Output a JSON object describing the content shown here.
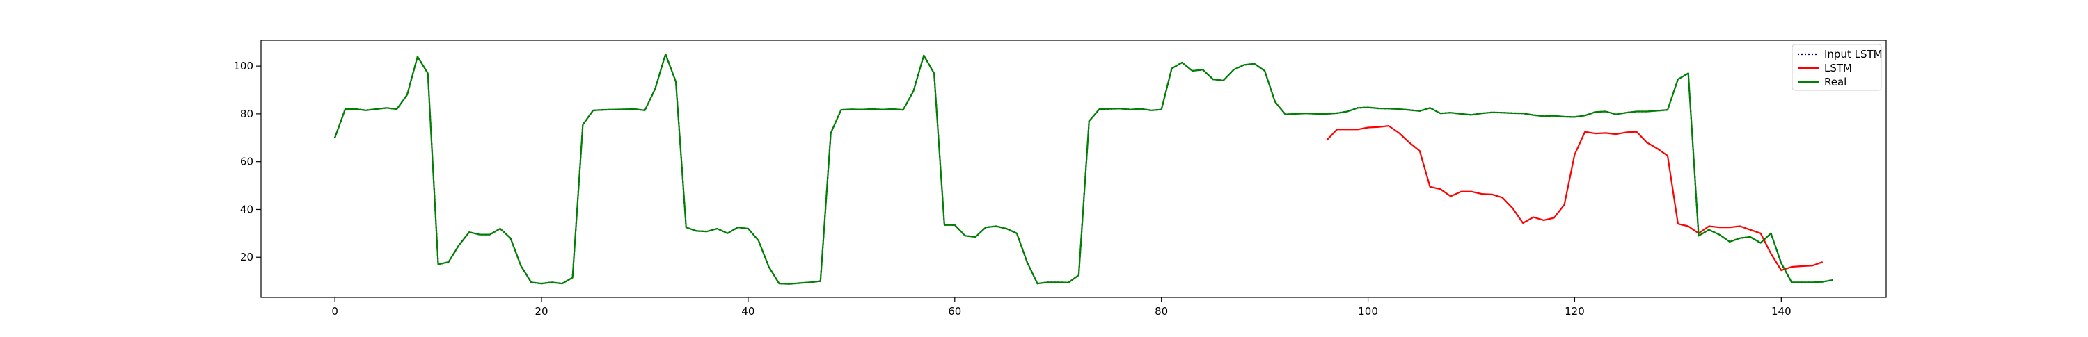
{
  "chart_data": {
    "type": "line",
    "title": "",
    "xlabel": "",
    "ylabel": "",
    "xlim": [
      -7.15,
      150.15
    ],
    "ylim": [
      3.2,
      110.8
    ],
    "xticks": [
      0,
      20,
      40,
      60,
      80,
      100,
      120,
      140
    ],
    "yticks": [
      20,
      40,
      60,
      80,
      100
    ],
    "grid": false,
    "legend_position": "top-right",
    "series": [
      {
        "name": "Input LSTM",
        "color": "#00008b",
        "style": "dotted",
        "x_start": 0,
        "values": [
          70,
          82,
          82,
          81.5,
          82,
          82.5,
          82,
          88,
          104,
          97,
          17,
          18,
          25,
          30.5,
          29.5,
          29.5,
          32,
          28,
          16.5,
          9.5,
          9,
          9.5,
          9,
          11.5,
          75.5,
          81.5,
          81.7,
          81.8,
          81.9,
          82,
          81.5,
          90.5,
          105,
          93.5,
          32.5,
          31,
          30.8,
          32,
          30,
          32.5,
          32,
          27,
          16,
          9,
          8.8,
          9.2,
          9.5,
          10,
          72,
          81.7,
          81.9,
          81.8,
          82,
          81.8,
          82,
          81.7,
          89.5,
          104.5,
          97,
          33.5,
          33.5,
          29,
          28.5,
          32.5,
          33,
          32,
          30,
          18,
          9,
          9.5,
          9.5,
          9.4,
          12.5,
          77,
          82,
          82.1,
          82.2,
          81.8,
          82.1,
          81.5,
          81.8,
          99,
          101.5,
          98,
          98.5,
          94.5,
          94,
          98.5,
          100.5,
          101,
          98,
          85,
          79.8,
          80,
          80.2,
          80,
          80,
          80.3,
          81,
          82.5,
          82.7,
          82.3,
          82.2,
          82,
          81.6,
          81.2,
          82.5,
          80.2,
          80.5,
          80,
          79.6,
          80.2,
          80.6,
          80.5,
          80.3,
          80.2,
          79.5,
          79,
          79.2,
          78.8,
          78.7,
          79.3,
          80.8,
          81,
          79.8,
          80.5,
          81,
          81,
          81.3,
          81.7,
          94.5,
          97,
          29,
          31.5,
          29.5,
          26.5,
          28,
          28.5,
          26,
          30,
          17.5,
          9.5,
          9.5,
          9.5,
          9.7,
          10.5
        ]
      },
      {
        "name": "LSTM",
        "color": "#ff0000",
        "style": "solid",
        "x_start": 96,
        "values": [
          69,
          73.5,
          73.5,
          73.5,
          74.3,
          74.5,
          75,
          72,
          68,
          64.5,
          49.5,
          48.5,
          45.5,
          47.5,
          47.5,
          46.5,
          46.3,
          45,
          40.5,
          34.3,
          36.8,
          35.5,
          36.5,
          42,
          63,
          72.5,
          71.8,
          72,
          71.5,
          72.3,
          72.5,
          68,
          65.5,
          62.5,
          34,
          33,
          30,
          33,
          32.5,
          32.5,
          33,
          31.5,
          30,
          21.5,
          14.5,
          16,
          16.3,
          16.5,
          18
        ]
      },
      {
        "name": "Real",
        "color": "#008000",
        "style": "solid",
        "x_start": 0,
        "values": [
          70,
          82,
          82,
          81.5,
          82,
          82.5,
          82,
          88,
          104,
          97,
          17,
          18,
          25,
          30.5,
          29.5,
          29.5,
          32,
          28,
          16.5,
          9.5,
          9,
          9.5,
          9,
          11.5,
          75.5,
          81.5,
          81.7,
          81.8,
          81.9,
          82,
          81.5,
          90.5,
          105,
          93.5,
          32.5,
          31,
          30.8,
          32,
          30,
          32.5,
          32,
          27,
          16,
          9,
          8.8,
          9.2,
          9.5,
          10,
          72,
          81.7,
          81.9,
          81.8,
          82,
          81.8,
          82,
          81.7,
          89.5,
          104.5,
          97,
          33.5,
          33.5,
          29,
          28.5,
          32.5,
          33,
          32,
          30,
          18,
          9,
          9.5,
          9.5,
          9.4,
          12.5,
          77,
          82,
          82.1,
          82.2,
          81.8,
          82.1,
          81.5,
          81.8,
          99,
          101.5,
          98,
          98.5,
          94.5,
          94,
          98.5,
          100.5,
          101,
          98,
          85,
          79.8,
          80,
          80.2,
          80,
          80,
          80.3,
          81,
          82.5,
          82.7,
          82.3,
          82.2,
          82,
          81.6,
          81.2,
          82.5,
          80.2,
          80.5,
          80,
          79.6,
          80.2,
          80.6,
          80.5,
          80.3,
          80.2,
          79.5,
          79,
          79.2,
          78.8,
          78.7,
          79.3,
          80.8,
          81,
          79.8,
          80.5,
          81,
          81,
          81.3,
          81.7,
          94.5,
          97,
          29,
          31.5,
          29.5,
          26.5,
          28,
          28.5,
          26,
          30,
          17.5,
          9.5,
          9.5,
          9.5,
          9.7,
          10.5
        ]
      }
    ]
  }
}
